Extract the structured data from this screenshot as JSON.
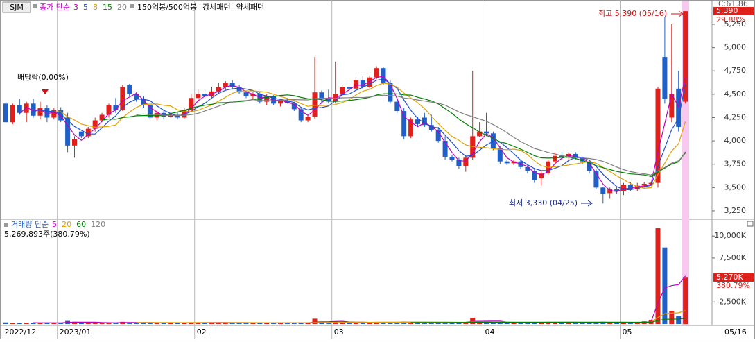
{
  "chart_data": {
    "type": "candlestick",
    "symbol": "SJM",
    "price_legend": {
      "label": "종가 단순",
      "extra": "150억봉/500억봉",
      "bull": "강세패턴",
      "bear": "약세패턴"
    },
    "ma_periods": [
      3,
      5,
      8,
      15,
      20
    ],
    "ma_colors": [
      "#c000c0",
      "#1f4fd0",
      "#e0a000",
      "#008000",
      "#808080"
    ],
    "volume_legend": {
      "label": "거래량 단순",
      "info": "5,269,893주(380.79%)"
    },
    "vma_periods": [
      5,
      20,
      60,
      120
    ],
    "vma_colors": [
      "#c000c0",
      "#e0a000",
      "#008000",
      "#808080"
    ],
    "up_color": "#e0211b",
    "down_color": "#1f5fc8",
    "categories": [
      "2022/12",
      null,
      null,
      null,
      null,
      null,
      null,
      null,
      "2023/01",
      null,
      null,
      null,
      null,
      null,
      null,
      null,
      null,
      null,
      null,
      null,
      null,
      null,
      null,
      null,
      null,
      null,
      null,
      null,
      "02",
      null,
      null,
      null,
      null,
      null,
      null,
      null,
      null,
      null,
      null,
      null,
      null,
      null,
      null,
      null,
      null,
      null,
      null,
      null,
      "03",
      null,
      null,
      null,
      null,
      null,
      null,
      null,
      null,
      null,
      null,
      null,
      null,
      null,
      null,
      null,
      null,
      null,
      null,
      null,
      null,
      null,
      "04",
      null,
      null,
      null,
      null,
      null,
      null,
      null,
      null,
      null,
      null,
      null,
      null,
      null,
      null,
      null,
      null,
      null,
      null,
      null,
      "05",
      null,
      null,
      null,
      null,
      null,
      null,
      null,
      null,
      null
    ],
    "end_date": "05/16",
    "open": [
      4400,
      4200,
      4380,
      4300,
      4400,
      4270,
      4350,
      4250,
      4330,
      4250,
      3950,
      4100,
      4050,
      4130,
      4220,
      4280,
      4380,
      4330,
      4600,
      4500,
      4450,
      4380,
      4250,
      4300,
      4260,
      4280,
      4250,
      4330,
      4460,
      4500,
      4480,
      4530,
      4580,
      4620,
      4580,
      4520,
      4480,
      4500,
      4420,
      4480,
      4400,
      4430,
      4400,
      4340,
      4220,
      4260,
      4520,
      4450,
      4420,
      4500,
      4580,
      4560,
      4650,
      4580,
      4680,
      4780,
      4620,
      4420,
      4320,
      4050,
      4230,
      4250,
      4170,
      4120,
      4000,
      3830,
      3800,
      3730,
      3820,
      4050,
      4100,
      4080,
      3920,
      3780,
      3760,
      3780,
      3720,
      3680,
      3600,
      3650,
      3780,
      3840,
      3820,
      3860,
      3820,
      3780,
      3680,
      3500,
      3440,
      3480,
      3460,
      3530,
      3480,
      3520,
      3540,
      3550,
      4900,
      4250,
      4560,
      4420
    ],
    "high": [
      4420,
      4400,
      4450,
      4420,
      4450,
      4420,
      4380,
      4350,
      4360,
      4300,
      4050,
      4100,
      4150,
      4250,
      4300,
      4400,
      4460,
      4600,
      4610,
      4520,
      4480,
      4400,
      4330,
      4330,
      4300,
      4310,
      4350,
      4500,
      4550,
      4550,
      4580,
      4620,
      4640,
      4650,
      4600,
      4540,
      4520,
      4520,
      4500,
      4490,
      4450,
      4460,
      4420,
      4360,
      4280,
      4900,
      4540,
      4550,
      4850,
      4600,
      4620,
      4680,
      4700,
      4700,
      4800,
      4790,
      4650,
      4450,
      4350,
      4250,
      4260,
      4300,
      4280,
      4150,
      4050,
      3850,
      3820,
      3850,
      4750,
      4200,
      4300,
      4100,
      3950,
      3800,
      3800,
      3800,
      3740,
      3700,
      3680,
      3800,
      3880,
      3880,
      3880,
      3880,
      3830,
      3800,
      3700,
      3510,
      3500,
      3510,
      3550,
      3560,
      3550,
      3560,
      3560,
      4580,
      5330,
      5250,
      4750,
      5390
    ],
    "low": [
      4200,
      4180,
      4280,
      4200,
      4250,
      4230,
      4200,
      4230,
      4200,
      3880,
      3820,
      4030,
      4030,
      4100,
      4200,
      4250,
      4300,
      4320,
      4480,
      4420,
      4350,
      4230,
      4220,
      4230,
      4250,
      4230,
      4240,
      4320,
      4420,
      4450,
      4460,
      4500,
      4540,
      4550,
      4500,
      4460,
      4440,
      4400,
      4380,
      4380,
      4370,
      4400,
      4320,
      4200,
      4200,
      4240,
      4400,
      4400,
      4400,
      4480,
      4500,
      4540,
      4550,
      4560,
      4660,
      4600,
      4400,
      4300,
      4020,
      4030,
      4150,
      4150,
      4100,
      3980,
      3800,
      3780,
      3700,
      3670,
      3800,
      4040,
      4050,
      3900,
      3750,
      3740,
      3740,
      3700,
      3650,
      3550,
      3520,
      3640,
      3760,
      3800,
      3800,
      3800,
      3750,
      3650,
      3480,
      3330,
      3380,
      3430,
      3420,
      3460,
      3460,
      3500,
      3520,
      3500,
      4400,
      4200,
      4100,
      4400
    ],
    "close": [
      4200,
      4380,
      4300,
      4400,
      4270,
      4350,
      4250,
      4330,
      4220,
      3950,
      4020,
      4050,
      4130,
      4220,
      4280,
      4380,
      4330,
      4580,
      4500,
      4450,
      4380,
      4250,
      4300,
      4260,
      4280,
      4250,
      4330,
      4460,
      4500,
      4480,
      4530,
      4580,
      4620,
      4580,
      4520,
      4480,
      4500,
      4420,
      4480,
      4400,
      4430,
      4410,
      4340,
      4220,
      4260,
      4520,
      4450,
      4420,
      4500,
      4580,
      4560,
      4650,
      4580,
      4680,
      4780,
      4620,
      4420,
      4320,
      4050,
      4230,
      4180,
      4170,
      4120,
      4000,
      3830,
      3800,
      3730,
      3820,
      4050,
      4100,
      4080,
      3920,
      3780,
      3760,
      3780,
      3720,
      3680,
      3580,
      3650,
      3780,
      3840,
      3820,
      3860,
      3820,
      3780,
      3680,
      3500,
      3430,
      3480,
      3460,
      3530,
      3480,
      3520,
      3540,
      3550,
      4560,
      4450,
      4500,
      4150,
      5390
    ],
    "volume": [
      180,
      150,
      120,
      160,
      140,
      130,
      150,
      120,
      140,
      350,
      250,
      160,
      140,
      150,
      130,
      160,
      120,
      250,
      180,
      150,
      140,
      160,
      130,
      120,
      110,
      120,
      140,
      200,
      180,
      150,
      160,
      170,
      180,
      140,
      130,
      150,
      120,
      140,
      130,
      120,
      110,
      120,
      140,
      160,
      130,
      600,
      250,
      180,
      300,
      220,
      180,
      200,
      170,
      190,
      230,
      200,
      180,
      190,
      260,
      210,
      170,
      180,
      160,
      190,
      230,
      170,
      180,
      200,
      700,
      280,
      220,
      240,
      200,
      150,
      140,
      160,
      170,
      180,
      220,
      260,
      210,
      160,
      150,
      140,
      150,
      170,
      220,
      260,
      180,
      150,
      170,
      180,
      200,
      300,
      400,
      10900,
      8700,
      1500,
      900,
      5269.893
    ],
    "ylim": [
      3168,
      5473
    ],
    "yticks": [
      {
        "value": 3250,
        "label": "3,250"
      },
      {
        "value": 3500,
        "label": "3,500"
      },
      {
        "value": 3750,
        "label": "3,750"
      },
      {
        "value": 4000,
        "label": "4,000"
      },
      {
        "value": 4250,
        "label": "4,250"
      },
      {
        "value": 4500,
        "label": "4,500"
      },
      {
        "value": 4750,
        "label": "4,750"
      },
      {
        "value": 5000,
        "label": "5,000"
      },
      {
        "value": 5250,
        "label": "5,250"
      }
    ],
    "vlim": [
      0,
      11830
    ],
    "vticks": [
      {
        "value": 2500,
        "label": "2,500K"
      },
      {
        "value": 7500,
        "label": "7,500K"
      },
      {
        "value": 10000,
        "label": "10,000K"
      }
    ],
    "last_price": {
      "value": 5390,
      "label": "5,390"
    },
    "last_change": "29.88%",
    "corner_label": "C:61.86",
    "last_volume": {
      "value": 5270,
      "label": "5,270K"
    },
    "last_volume_ratio": "380.79%",
    "annotations": {
      "high": "최고 5,390 (05/16)",
      "low": "최저 3,330 (04/25)",
      "dividend": "배당락(0.00%)"
    }
  }
}
